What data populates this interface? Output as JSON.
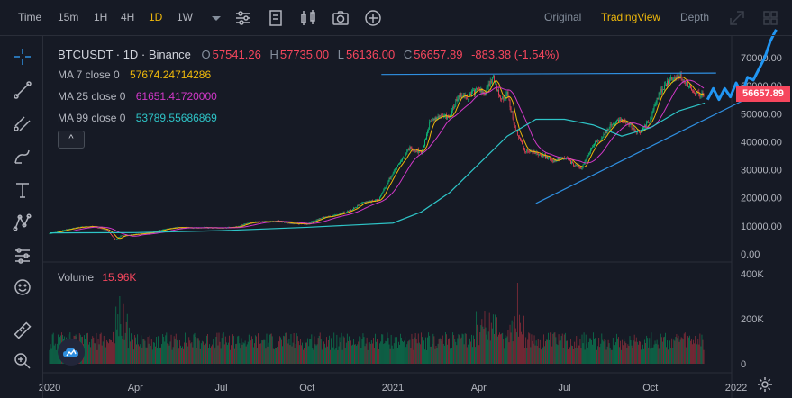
{
  "toolbar": {
    "intervals": [
      "Time",
      "15m",
      "1H",
      "4H",
      "1D",
      "1W"
    ],
    "active_interval": "1D",
    "views": [
      "Original",
      "TradingView",
      "Depth"
    ],
    "active_view": "TradingView"
  },
  "legend": {
    "symbol_line": "BTCUSDT · 1D · Binance",
    "open_label": "O",
    "open": "57541.26",
    "high_label": "H",
    "high": "57735.00",
    "low_label": "L",
    "low": "56136.00",
    "close_label": "C",
    "close": "56657.89",
    "change": "-883.38 (-1.54%)",
    "ma7_label": "MA 7 close 0",
    "ma7_value": "57674.24714286",
    "ma25_label": "MA 25 close 0",
    "ma25_value": "61651.41720000",
    "ma99_label": "MA 99 close 0",
    "ma99_value": "53789.55686869",
    "volume_label": "Volume",
    "volume_value": "15.96K",
    "collapse_glyph": "^"
  },
  "colors": {
    "up": "#0ecb81",
    "down": "#f6465d",
    "ma7": "#f0b90b",
    "ma25": "#d138c8",
    "ma99": "#2ec4c7",
    "trendline": "#2f8fe0",
    "accent": "#f0b90b",
    "background": "#161a25"
  },
  "icons": {
    "toolbar": [
      "chevron-down-icon",
      "indicators-icon",
      "template-icon",
      "chart-type-icon",
      "camera-icon",
      "add-icon",
      "expand-icon",
      "grid-icon"
    ],
    "left": [
      "crosshair-icon",
      "trend-line-icon",
      "fib-icon",
      "brush-icon",
      "text-icon",
      "pattern-icon",
      "measure-icon",
      "emoji-icon",
      "ruler-icon",
      "zoom-icon"
    ],
    "bottom_right": "settings-icon"
  },
  "chart_data": {
    "type": "candlestick",
    "symbol": "BTCUSDT",
    "interval": "1D",
    "price_axis": {
      "ylim": [
        0,
        80000
      ],
      "ticks": [
        0,
        10000,
        20000,
        30000,
        40000,
        50000,
        60000,
        70000
      ],
      "tick_labels": [
        "0.00",
        "10000.00",
        "20000.00",
        "30000.00",
        "40000.00",
        "50000.00",
        "60000.00",
        "70000.00"
      ],
      "current_price": 56657.89,
      "current_price_label": "56657.89"
    },
    "volume_axis": {
      "ylim": [
        0,
        450000
      ],
      "ticks": [
        0,
        200000,
        400000
      ],
      "tick_labels": [
        "0",
        "200K",
        "400K"
      ]
    },
    "x_ticks": [
      "2020",
      "Apr",
      "Jul",
      "Oct",
      "2021",
      "Apr",
      "Jul",
      "Oct",
      "2022"
    ],
    "x_tick_months": [
      0,
      3,
      6,
      9,
      12,
      15,
      18,
      21,
      24
    ],
    "close_series": {
      "months": [
        0,
        0.5,
        1,
        1.5,
        2,
        2.3,
        2.5,
        3,
        3.5,
        4,
        4.5,
        5,
        5.5,
        6,
        6.5,
        7,
        7.5,
        8,
        8.5,
        9,
        9.5,
        10,
        10.5,
        11,
        11.5,
        12,
        12.3,
        12.6,
        13,
        13.3,
        13.6,
        14,
        14.3,
        14.6,
        15,
        15.2,
        15.5,
        15.8,
        16,
        16.3,
        16.6,
        17,
        17.3,
        17.6,
        18,
        18.3,
        18.6,
        19,
        19.3,
        19.6,
        20,
        20.3,
        20.6,
        21,
        21.3,
        21.6,
        22,
        22.3,
        22.6,
        22.9
      ],
      "values": [
        7200,
        8500,
        9500,
        9800,
        8500,
        5000,
        6500,
        7000,
        7500,
        8800,
        9500,
        9300,
        9400,
        9200,
        9600,
        11200,
        11500,
        11700,
        10800,
        10700,
        12900,
        13800,
        15500,
        18500,
        19200,
        29000,
        33000,
        38000,
        36000,
        47000,
        49000,
        49000,
        57000,
        56000,
        59000,
        57000,
        63000,
        55000,
        57000,
        44000,
        37000,
        36000,
        35000,
        33000,
        34500,
        32000,
        30500,
        39000,
        41000,
        46000,
        48000,
        46000,
        43000,
        48000,
        57000,
        61000,
        64000,
        60000,
        57000,
        56657
      ]
    },
    "ma99_series": {
      "months": [
        0,
        3,
        6,
        9,
        12,
        13,
        14,
        15,
        16,
        17,
        18,
        19,
        20,
        21,
        22,
        22.9
      ],
      "values": [
        7500,
        7600,
        8300,
        9500,
        11000,
        15000,
        22000,
        32000,
        42000,
        48000,
        48000,
        46000,
        42000,
        45000,
        51000,
        53789
      ]
    },
    "trendlines": [
      {
        "from": [
          11.6,
          64000
        ],
        "to": [
          23.3,
          64500
        ]
      },
      {
        "from": [
          17,
          18000
        ],
        "to": [
          24.5,
          56000
        ]
      }
    ],
    "projection": {
      "months": [
        23.0,
        23.2,
        23.4,
        23.6,
        23.8,
        24.0,
        24.2,
        24.4,
        24.6,
        24.8,
        25.0,
        25.2,
        25.4
      ],
      "values": [
        55000,
        59000,
        55000,
        59000,
        56000,
        61000,
        57000,
        63000,
        62000,
        66000,
        70000,
        76000,
        80000
      ]
    }
  }
}
